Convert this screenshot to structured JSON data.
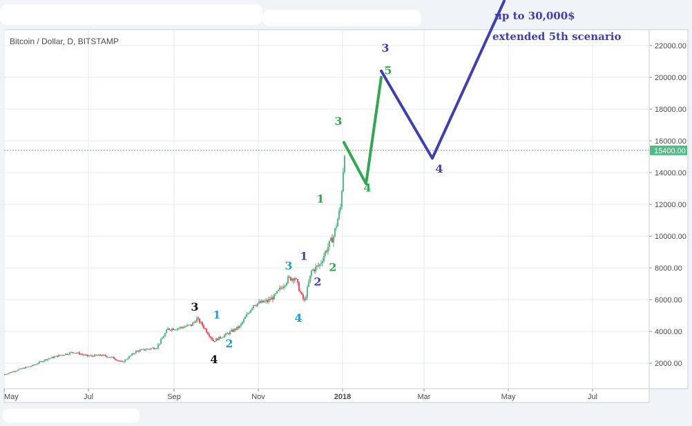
{
  "chart_title": "Bitcoin / Dollar, D, BITSTAMP",
  "annotation": {
    "line1": "up to 30,000$",
    "line2": "extended 5th scenario"
  },
  "current_price": {
    "label": "15400.00",
    "value": 15400,
    "color": "#53b987"
  },
  "colors": {
    "background": "#ffffff",
    "grid": "#e6ebf0",
    "up_candle": "#53b987",
    "down_candle": "#eb4d5c",
    "wave_green": "#2fa84f",
    "wave_blue": "#3f3fb0",
    "label_black": "#111111",
    "label_cyan": "#1e9fd8",
    "label_indigo": "#3f3fb0",
    "label_green": "#2fa84f"
  },
  "chart_data": {
    "type": "candlestick",
    "title": "Bitcoin / Dollar, D, BITSTAMP",
    "x_tick_labels": [
      "May",
      "Jul",
      "Sep",
      "Nov",
      "2018",
      "Mar",
      "May",
      "Jul"
    ],
    "y_tick_labels": [
      "2000.00",
      "4000.00",
      "6000.00",
      "8000.00",
      "10000.00",
      "12000.00",
      "14000.00",
      "16000.00",
      "18000.00",
      "20000.00",
      "22000.00"
    ],
    "y_ticks": [
      2000,
      4000,
      6000,
      8000,
      10000,
      12000,
      14000,
      16000,
      18000,
      20000,
      22000
    ],
    "ylim": [
      200,
      23200
    ],
    "xlim_days": [
      0,
      439
    ],
    "price_anchors": [
      {
        "day": 0,
        "price": 1300
      },
      {
        "day": 10,
        "price": 1600
      },
      {
        "day": 20,
        "price": 1850
      },
      {
        "day": 30,
        "price": 2250
      },
      {
        "day": 40,
        "price": 2500
      },
      {
        "day": 50,
        "price": 2700
      },
      {
        "day": 60,
        "price": 2450
      },
      {
        "day": 70,
        "price": 2500
      },
      {
        "day": 78,
        "price": 2350
      },
      {
        "day": 85,
        "price": 2050
      },
      {
        "day": 95,
        "price": 2750
      },
      {
        "day": 110,
        "price": 3000
      },
      {
        "day": 118,
        "price": 4150
      },
      {
        "day": 125,
        "price": 4200
      },
      {
        "day": 135,
        "price": 4400
      },
      {
        "day": 139,
        "price": 4800
      },
      {
        "day": 143,
        "price": 4400
      },
      {
        "day": 151,
        "price": 3400
      },
      {
        "day": 160,
        "price": 3800
      },
      {
        "day": 170,
        "price": 4300
      },
      {
        "day": 180,
        "price": 5700
      },
      {
        "day": 190,
        "price": 5900
      },
      {
        "day": 195,
        "price": 6200
      },
      {
        "day": 205,
        "price": 7300
      },
      {
        "day": 210,
        "price": 7400
      },
      {
        "day": 215,
        "price": 6200
      },
      {
        "day": 217,
        "price": 5900
      },
      {
        "day": 222,
        "price": 7800
      },
      {
        "day": 228,
        "price": 8200
      },
      {
        "day": 232,
        "price": 9000
      },
      {
        "day": 238,
        "price": 10000
      },
      {
        "day": 243,
        "price": 11800
      },
      {
        "day": 246,
        "price": 15400
      }
    ],
    "forecast_paths": [
      {
        "color": "wave_green",
        "points": [
          {
            "day": 246,
            "price": 15900
          },
          {
            "day": 262,
            "price": 13300
          },
          {
            "day": 273,
            "price": 20000
          }
        ]
      },
      {
        "color": "wave_blue",
        "points": [
          {
            "day": 273,
            "price": 20400
          },
          {
            "day": 310,
            "price": 14900
          },
          {
            "day": 362,
            "price": 24800
          }
        ]
      }
    ],
    "wave_labels": [
      {
        "text": "3",
        "color": "label_black",
        "day": 138,
        "price": 5300
      },
      {
        "text": "4",
        "color": "label_black",
        "day": 152,
        "price": 2000
      },
      {
        "text": "1",
        "color": "label_cyan",
        "day": 154,
        "price": 4800
      },
      {
        "text": "2",
        "color": "label_cyan",
        "day": 163,
        "price": 3000
      },
      {
        "text": "3",
        "color": "label_cyan",
        "day": 206,
        "price": 7900
      },
      {
        "text": "4",
        "color": "label_cyan",
        "day": 213,
        "price": 4600
      },
      {
        "text": "1",
        "color": "label_indigo",
        "day": 217,
        "price": 8500
      },
      {
        "text": "2",
        "color": "label_indigo",
        "day": 227,
        "price": 6900
      },
      {
        "text": "1",
        "color": "label_green",
        "day": 229,
        "price": 12100
      },
      {
        "text": "2",
        "color": "label_green",
        "day": 238,
        "price": 7800
      },
      {
        "text": "3",
        "color": "label_green",
        "day": 242,
        "price": 17000
      },
      {
        "text": "4",
        "color": "label_green",
        "day": 263,
        "price": 12800
      },
      {
        "text": "3",
        "color": "label_indigo",
        "day": 276,
        "price": 21600
      },
      {
        "text": "5",
        "color": "label_green",
        "day": 278,
        "price": 20200
      },
      {
        "text": "4",
        "color": "label_indigo",
        "day": 315,
        "price": 14000
      }
    ]
  }
}
